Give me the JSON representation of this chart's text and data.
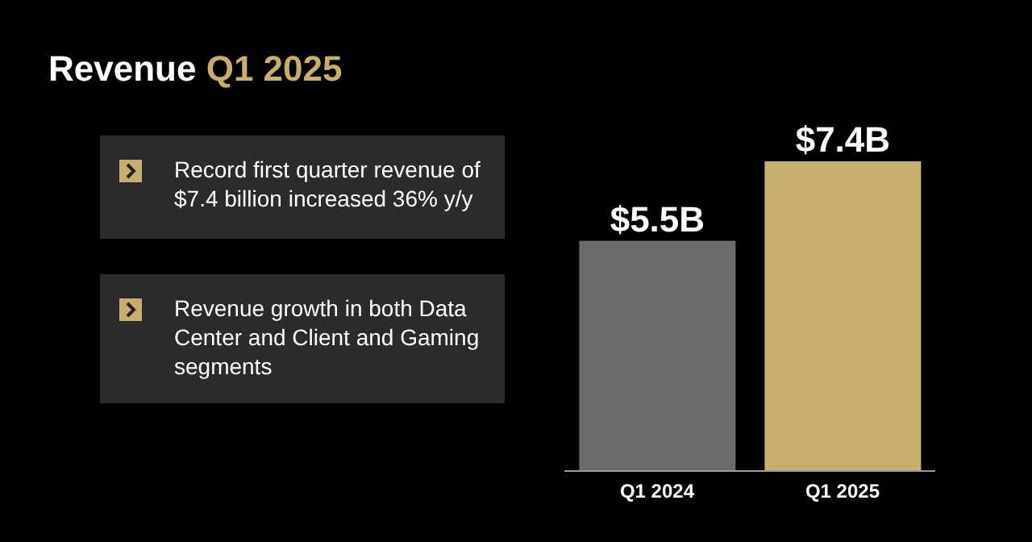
{
  "chart_data": {
    "type": "bar",
    "title": "Revenue Q1 2025",
    "categories": [
      "Q1 2024",
      "Q1 2025"
    ],
    "values": [
      5.5,
      7.4
    ],
    "colors": [
      "#6b6b6b",
      "#c6af6c"
    ],
    "value_labels": [
      "$5.5B",
      "$7.4B"
    ],
    "annotations": [
      "Record first quarter revenue of $7.4 billion increased 36% y/y",
      "Revenue growth in both Data Center and Client and Gaming segments"
    ]
  }
}
